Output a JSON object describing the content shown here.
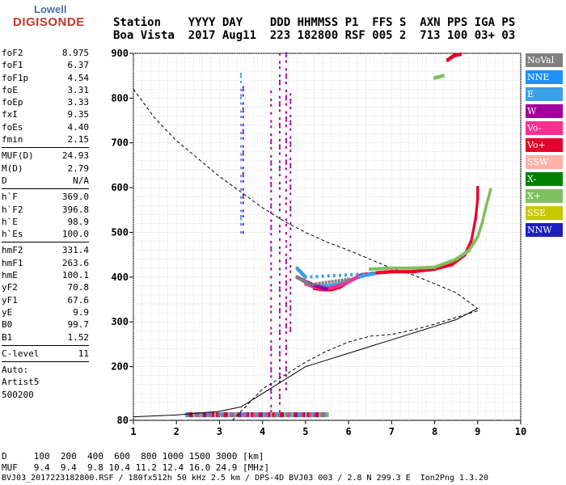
{
  "logo": {
    "line1": "Lowell",
    "line2": "DIGISONDE"
  },
  "header": {
    "line1": "Station    YYYY DAY    DDD HHMMSS P1  FFS S  AXN PPS IGA PS",
    "line2": "Boa Vista  2017 Aug11  223 182800 RSF 005 2  713 100 03+ 03"
  },
  "params": [
    {
      "k": "foF2",
      "v": "8.975"
    },
    {
      "k": "foF1",
      "v": "6.37"
    },
    {
      "k": "foF1p",
      "v": "4.54"
    },
    {
      "k": "foE",
      "v": "3.31"
    },
    {
      "k": "foEp",
      "v": "3.33"
    },
    {
      "k": "fxI",
      "v": "9.35"
    },
    {
      "k": "foEs",
      "v": "4.40"
    },
    {
      "k": "fmin",
      "v": "2.15"
    },
    {
      "sep": true
    },
    {
      "k": "MUF(D)",
      "v": "24.93"
    },
    {
      "k": "M(D)",
      "v": "2.79"
    },
    {
      "k": "D",
      "v": "N/A"
    },
    {
      "sep": true
    },
    {
      "k": "h`F",
      "v": "369.0"
    },
    {
      "k": "h`F2",
      "v": "396.8"
    },
    {
      "k": "h`E",
      "v": "98.9"
    },
    {
      "k": "h`Es",
      "v": "100.0"
    },
    {
      "sep": true
    },
    {
      "k": "hmF2",
      "v": "331.4"
    },
    {
      "k": "hmF1",
      "v": "263.6"
    },
    {
      "k": "hmE",
      "v": "100.1"
    },
    {
      "k": "yF2",
      "v": "70.8"
    },
    {
      "k": "yF1",
      "v": "67.6"
    },
    {
      "k": "yE",
      "v": "9.9"
    },
    {
      "k": "B0",
      "v": "99.7"
    },
    {
      "k": "B1",
      "v": "1.52"
    },
    {
      "sep": true
    },
    {
      "k": "C-level",
      "v": "11"
    },
    {
      "sep": true
    },
    {
      "text": "Auto:"
    },
    {
      "text": "Artist5"
    },
    {
      "text": "500200"
    }
  ],
  "legend": [
    {
      "label": "NoVal",
      "color": "#808080"
    },
    {
      "label": "NNE",
      "color": "#1e90ff"
    },
    {
      "label": "E",
      "color": "#3ca0e8"
    },
    {
      "label": "W",
      "color": "#a0009c"
    },
    {
      "label": "Vo-",
      "color": "#ff2f92"
    },
    {
      "label": "Vo+",
      "color": "#e8002c"
    },
    {
      "label": "SSW",
      "color": "#ffb0a8"
    },
    {
      "label": "X-",
      "color": "#008000"
    },
    {
      "label": "X+",
      "color": "#7fbf5f"
    },
    {
      "label": "SSE",
      "color": "#c8c800"
    },
    {
      "label": "NNW",
      "color": "#1f1fbf"
    }
  ],
  "bottom": {
    "line1": "D     100  200  400  600  800 1000 1500 3000 [km]",
    "line2": "MUF   9.4  9.4  9.8 10.4 11.2 12.4 16.0 24.9 [MHz]",
    "line3": "BVJ03_2017223182800.RSF / 180fx512h 50 kHz 2.5 km / DPS-4D BVJ03 003 / 2.8 N 299.3 E  Ion2Png 1.3.20"
  },
  "chart_data": {
    "type": "scatter",
    "xlim": [
      1,
      10
    ],
    "ylim": [
      80,
      900
    ],
    "x_ticks": [
      1,
      2,
      3,
      4,
      5,
      6,
      7,
      8,
      9,
      10
    ],
    "y_ticks": [
      80,
      200,
      300,
      400,
      500,
      600,
      700,
      800,
      900
    ],
    "grid": true,
    "series": [
      {
        "name": "Vo+",
        "color": "#e8002c",
        "points": [
          [
            5.2,
            375
          ],
          [
            5.4,
            372
          ],
          [
            5.6,
            372
          ],
          [
            5.8,
            378
          ],
          [
            6.0,
            390
          ],
          [
            6.3,
            405
          ],
          [
            6.7,
            410
          ],
          [
            7.0,
            412
          ],
          [
            7.5,
            412
          ],
          [
            8.0,
            418
          ],
          [
            8.4,
            428
          ],
          [
            8.7,
            450
          ],
          [
            8.85,
            480
          ],
          [
            8.95,
            530
          ],
          [
            9.0,
            575
          ],
          [
            9.0,
            600
          ],
          [
            8.3,
            885
          ],
          [
            8.45,
            895
          ],
          [
            8.6,
            898
          ]
        ]
      },
      {
        "name": "E",
        "color": "#3ca0e8",
        "points": [
          [
            5.2,
            382
          ],
          [
            5.5,
            380
          ],
          [
            5.8,
            385
          ],
          [
            6.0,
            392
          ],
          [
            6.3,
            402
          ],
          [
            6.6,
            408
          ],
          [
            5.0,
            400
          ],
          [
            4.9,
            410
          ],
          [
            4.8,
            420
          ]
        ]
      },
      {
        "name": "Vo-",
        "color": "#ff2f92",
        "points": [
          [
            5.0,
            385
          ],
          [
            5.2,
            378
          ],
          [
            5.4,
            374
          ],
          [
            5.6,
            376
          ],
          [
            5.9,
            384
          ],
          [
            6.2,
            400
          ]
        ]
      },
      {
        "name": "W",
        "color": "#a0009c",
        "points": [
          [
            4.8,
            400
          ],
          [
            5.0,
            390
          ],
          [
            5.3,
            378
          ],
          [
            5.5,
            373
          ]
        ]
      },
      {
        "name": "X+",
        "color": "#7fbf5f",
        "points": [
          [
            6.5,
            418
          ],
          [
            7.0,
            420
          ],
          [
            7.5,
            420
          ],
          [
            8.0,
            422
          ],
          [
            8.5,
            440
          ],
          [
            8.8,
            460
          ],
          [
            9.0,
            490
          ],
          [
            9.1,
            520
          ],
          [
            9.2,
            560
          ],
          [
            9.3,
            595
          ],
          [
            8.0,
            845
          ],
          [
            8.2,
            850
          ]
        ]
      },
      {
        "name": "NoVal",
        "color": "#808080",
        "points": [
          [
            4.8,
            400
          ],
          [
            5.1,
            383
          ],
          [
            6.0,
            395
          ]
        ]
      }
    ],
    "lines": [
      {
        "name": "",
        "style": "dashed",
        "points": [
          [
            1,
            820
          ],
          [
            1.5,
            755
          ],
          [
            2,
            705
          ],
          [
            2.5,
            665
          ],
          [
            3,
            625
          ],
          [
            3.5,
            590
          ],
          [
            4,
            555
          ],
          [
            4.5,
            525
          ],
          [
            5,
            500
          ],
          [
            5.5,
            478
          ],
          [
            6,
            460
          ],
          [
            6.5,
            440
          ],
          [
            7,
            420
          ],
          [
            7.5,
            405
          ],
          [
            8,
            385
          ],
          [
            8.5,
            365
          ],
          [
            9,
            330
          ]
        ]
      },
      {
        "name": "",
        "style": "dashed-low",
        "points": [
          [
            3.3,
            80
          ],
          [
            3.6,
            110
          ],
          [
            4,
            150
          ],
          [
            4.5,
            180
          ],
          [
            5,
            210
          ],
          [
            5.5,
            235
          ],
          [
            6,
            255
          ],
          [
            6.5,
            268
          ],
          [
            7,
            272
          ],
          [
            7.5,
            282
          ],
          [
            8,
            295
          ],
          [
            8.5,
            310
          ],
          [
            9,
            325
          ]
        ]
      },
      {
        "name": "",
        "style": "solid",
        "points": [
          [
            1,
            88
          ],
          [
            2,
            92
          ],
          [
            3,
            100
          ],
          [
            3.5,
            110
          ],
          [
            4,
            140
          ],
          [
            4.5,
            170
          ],
          [
            5,
            200
          ],
          [
            5.5,
            215
          ],
          [
            6,
            230
          ],
          [
            6.5,
            245
          ],
          [
            7,
            260
          ],
          [
            7.5,
            275
          ],
          [
            8,
            290
          ],
          [
            8.5,
            305
          ],
          [
            9,
            330
          ]
        ]
      }
    ],
    "es_traces": [
      {
        "x": 4.4,
        "ylow": 100,
        "yhigh": 900,
        "color": "#a0009c"
      },
      {
        "x": 4.2,
        "ylow": 100,
        "yhigh": 820,
        "color": "#a0009c"
      },
      {
        "x": 4.55,
        "ylow": 150,
        "yhigh": 900,
        "color": "#a0009c"
      },
      {
        "x": 3.5,
        "ylow": 500,
        "yhigh": 860,
        "color": "#3ca0e8"
      },
      {
        "x": 3.55,
        "ylow": 500,
        "yhigh": 830,
        "color": "#a0009c"
      },
      {
        "x": 4.65,
        "ylow": 280,
        "yhigh": 820,
        "color": "#a0009c"
      }
    ],
    "bottom_band": {
      "xmin": 2.2,
      "xmax": 5.5,
      "y": 90,
      "colors": [
        "#e8002c",
        "#ff2f92",
        "#a0009c",
        "#3ca0e8",
        "#7fbf5f",
        "#808080"
      ]
    }
  }
}
